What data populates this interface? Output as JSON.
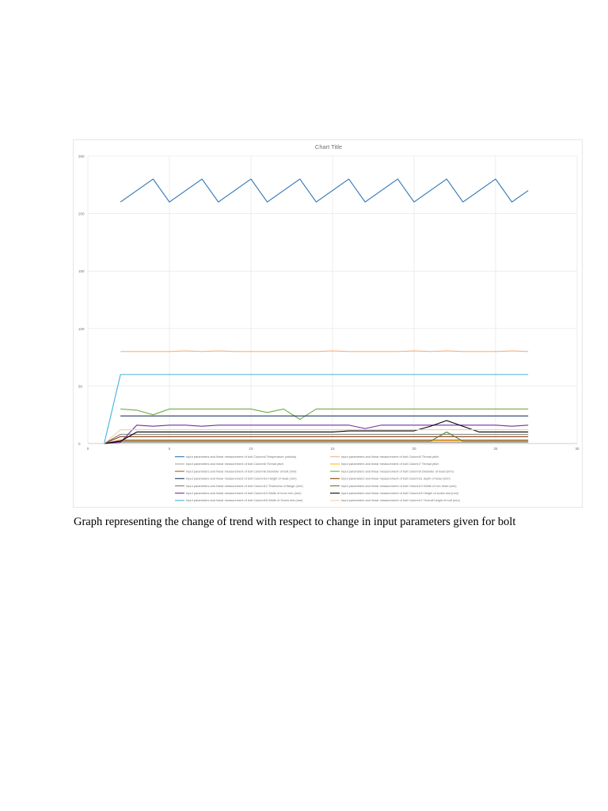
{
  "caption": "Graph representing the change of trend with respect to change in input parameters given for bolt",
  "chart_data": {
    "type": "line",
    "title": "Chart Title",
    "xlabel": "",
    "ylabel": "",
    "xlim": [
      0,
      30
    ],
    "ylim": [
      0,
      250
    ],
    "x_ticks": [
      0,
      5,
      10,
      15,
      20,
      25,
      30
    ],
    "y_ticks": [
      0,
      50,
      100,
      150,
      200,
      250
    ],
    "grid": true,
    "legend_position": "bottom",
    "series": [
      {
        "name": "Input parameters and linear measurement of bolt Column4 Temperature (celsius)",
        "color": "#2e75b6",
        "x": [
          2,
          3,
          4,
          5,
          6,
          7,
          8,
          9,
          10,
          11,
          12,
          13,
          14,
          15,
          16,
          17,
          18,
          19,
          20,
          21,
          22,
          23,
          24,
          25,
          26,
          27
        ],
        "values": [
          210,
          220,
          230,
          210,
          220,
          230,
          210,
          220,
          230,
          210,
          220,
          230,
          210,
          220,
          230,
          210,
          220,
          230,
          210,
          220,
          230,
          210,
          220,
          230,
          210,
          220
        ]
      },
      {
        "name": "Input parameters and linear measurement of bolt Column5 Thread pitch",
        "color": "#f4b183",
        "x": [
          2,
          3,
          4,
          5,
          6,
          7,
          8,
          9,
          10,
          11,
          12,
          13,
          14,
          15,
          16,
          17,
          18,
          19,
          20,
          21,
          22,
          23,
          24,
          25,
          26,
          27
        ],
        "values": [
          80,
          80,
          80,
          80,
          80.5,
          80,
          80.5,
          80,
          80,
          80,
          80,
          80,
          80,
          80.5,
          80,
          80,
          80,
          80,
          80.5,
          80,
          80.5,
          80,
          80,
          80,
          80.5,
          80
        ]
      },
      {
        "name": "Input parameters and linear measurement of bolt Column6 Thread pitch",
        "color": "#a5a5a5",
        "x": [
          1,
          2,
          3,
          27
        ],
        "values": [
          0,
          1,
          1,
          1
        ]
      },
      {
        "name": "Input parameters and linear measurement of bolt Column7 Thread pitch",
        "color": "#ffc000",
        "x": [
          1,
          2,
          3,
          27
        ],
        "values": [
          0,
          2,
          2,
          2
        ]
      },
      {
        "name": "Input parameters and linear measurement of bolt Column8 Diameter of bolt (mm)",
        "color": "#c55a11",
        "x": [
          1,
          2,
          3,
          27
        ],
        "values": [
          0,
          3,
          3,
          3
        ]
      },
      {
        "name": "Input parameters and linear measurement of bolt Column9 Diameter of head (mm)",
        "color": "#70ad47",
        "x": [
          2,
          3,
          4,
          5,
          6,
          7,
          8,
          9,
          10,
          11,
          12,
          13,
          14,
          15,
          16,
          17,
          18,
          19,
          20,
          21,
          22,
          23,
          24,
          25,
          26,
          27
        ],
        "values": [
          30,
          29,
          25,
          30,
          30,
          30,
          30,
          30,
          30,
          27,
          30,
          21,
          30,
          30,
          30,
          30,
          30,
          30,
          30,
          30,
          30,
          30,
          30,
          30,
          30,
          30
        ]
      },
      {
        "name": "Input parameters and linear measurement of bolt Column10 Height of head (mm)",
        "color": "#203864",
        "x": [
          2,
          3,
          4,
          5,
          6,
          7,
          8,
          9,
          10,
          11,
          12,
          13,
          14,
          15,
          16,
          17,
          18,
          19,
          20,
          21,
          22,
          23,
          24,
          25,
          26,
          27
        ],
        "values": [
          24,
          24,
          24,
          24,
          24,
          24,
          24,
          24,
          24,
          24,
          24,
          24,
          24,
          24,
          24,
          24,
          24,
          24,
          24,
          24,
          24,
          24,
          24,
          24,
          24,
          24
        ]
      },
      {
        "name": "Input parameters and linear measurement of bolt Column11 depth of head (mm)",
        "color": "#843c0c",
        "x": [
          1,
          2,
          3,
          27
        ],
        "values": [
          0,
          6,
          6,
          6
        ]
      },
      {
        "name": "Input parameters and linear measurement of bolt Column12 Thickness of flange (mm)",
        "color": "#7f7f7f",
        "x": [
          1,
          2,
          3,
          27
        ],
        "values": [
          0,
          8,
          8,
          8
        ]
      },
      {
        "name": "Input parameters and linear measurement of bolt Column13 Width of hex head (mm)",
        "color": "#548235",
        "x": [
          1,
          2,
          3,
          20,
          21,
          22,
          23,
          24,
          27
        ],
        "values": [
          0,
          2,
          2,
          2,
          2,
          10,
          2,
          2,
          2
        ]
      },
      {
        "name": "Input parameters and linear measurement of bolt Column14 Width of inner hex (mm)",
        "color": "#7030a0",
        "x": [
          1,
          2,
          3,
          4,
          5,
          6,
          7,
          8,
          9,
          10,
          11,
          12,
          13,
          14,
          15,
          16,
          17,
          18,
          19,
          20,
          21,
          22,
          23,
          24,
          25,
          26,
          27
        ],
        "values": [
          0,
          1,
          16,
          15,
          16,
          16,
          15,
          16,
          16,
          16,
          16,
          16,
          16,
          16,
          16,
          16,
          13,
          16,
          16,
          16,
          16,
          16,
          16,
          16,
          16,
          15,
          16
        ]
      },
      {
        "name": "Input parameters and linear measurement of bolt Column15 Height of screw slot (mm)",
        "color": "#000000",
        "x": [
          1,
          2,
          3,
          4,
          5,
          6,
          7,
          8,
          9,
          10,
          11,
          12,
          13,
          14,
          15,
          16,
          17,
          18,
          19,
          20,
          21,
          22,
          23,
          24,
          25,
          26,
          27
        ],
        "values": [
          0,
          2,
          10,
          10,
          10,
          10,
          10,
          10,
          10,
          10,
          10,
          10,
          10,
          10,
          10,
          11,
          11,
          11,
          11,
          11,
          15,
          20,
          15,
          10,
          10,
          10,
          10
        ]
      },
      {
        "name": "Input parameters and linear measurement of bolt Column16 Width of Screw slot (mm)",
        "color": "#41b0e0",
        "x": [
          1,
          2,
          27
        ],
        "values": [
          0,
          60,
          60
        ]
      },
      {
        "name": "Input parameters and linear measurement of bolt Column17 Overall height of bolt (mm)",
        "color": "#f8cbad",
        "x": [
          1,
          2,
          3,
          27
        ],
        "values": [
          0,
          12,
          12,
          12
        ]
      }
    ]
  }
}
